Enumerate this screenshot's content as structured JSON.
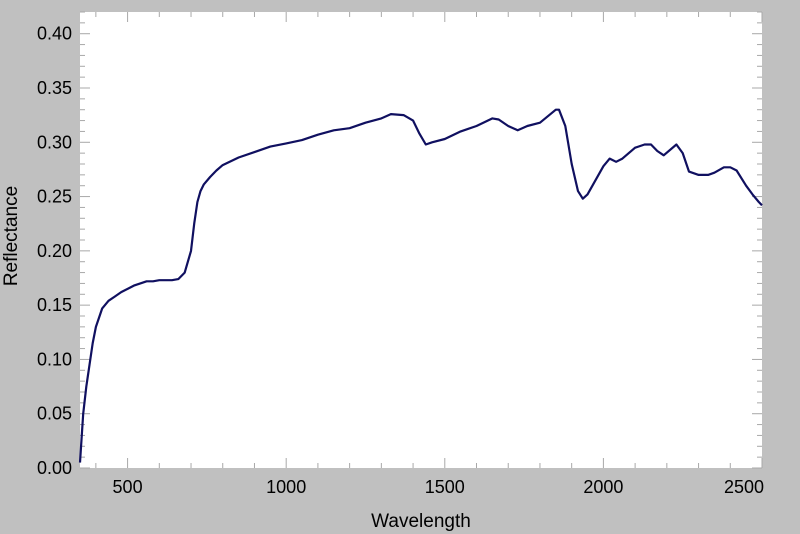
{
  "chart_data": {
    "type": "line",
    "title": "",
    "xlabel": "Wavelength",
    "ylabel": "Reflectance",
    "xlim": [
      350,
      2500
    ],
    "ylim": [
      0.0,
      0.42
    ],
    "x_ticks": [
      500,
      1000,
      1500,
      2000,
      2500
    ],
    "y_ticks": [
      0.0,
      0.05,
      0.1,
      0.15,
      0.2,
      0.25,
      0.3,
      0.35,
      0.4
    ],
    "x_tick_labels": [
      "500",
      "1000",
      "1500",
      "2000",
      "2500"
    ],
    "y_tick_labels": [
      "0.00",
      "0.05",
      "0.10",
      "0.15",
      "0.20",
      "0.25",
      "0.30",
      "0.35",
      "0.40"
    ],
    "grid": false,
    "legend": "none",
    "colors": {
      "line": "#101060",
      "plot_background": "#ffffff",
      "figure_background": "#c0c0c0"
    },
    "series": [
      {
        "x": [
          350,
          360,
          370,
          380,
          390,
          400,
          420,
          440,
          460,
          480,
          500,
          520,
          540,
          560,
          580,
          600,
          620,
          640,
          660,
          680,
          700,
          710,
          720,
          730,
          740,
          760,
          780,
          800,
          850,
          900,
          950,
          1000,
          1050,
          1100,
          1150,
          1200,
          1250,
          1300,
          1330,
          1370,
          1400,
          1420,
          1440,
          1460,
          1500,
          1550,
          1600,
          1650,
          1670,
          1700,
          1730,
          1760,
          1800,
          1850,
          1860,
          1880,
          1900,
          1920,
          1935,
          1950,
          2000,
          2020,
          2040,
          2060,
          2100,
          2130,
          2150,
          2170,
          2190,
          2230,
          2250,
          2270,
          2300,
          2330,
          2350,
          2380,
          2400,
          2420,
          2450,
          2470,
          2490,
          2500
        ],
        "y": [
          0.005,
          0.05,
          0.075,
          0.095,
          0.115,
          0.13,
          0.147,
          0.154,
          0.158,
          0.162,
          0.165,
          0.168,
          0.17,
          0.172,
          0.172,
          0.173,
          0.173,
          0.173,
          0.174,
          0.18,
          0.2,
          0.225,
          0.245,
          0.255,
          0.261,
          0.268,
          0.274,
          0.279,
          0.286,
          0.291,
          0.296,
          0.299,
          0.302,
          0.307,
          0.311,
          0.313,
          0.318,
          0.322,
          0.326,
          0.325,
          0.32,
          0.308,
          0.298,
          0.3,
          0.303,
          0.31,
          0.315,
          0.322,
          0.321,
          0.315,
          0.311,
          0.315,
          0.318,
          0.33,
          0.33,
          0.315,
          0.28,
          0.255,
          0.248,
          0.252,
          0.278,
          0.285,
          0.282,
          0.285,
          0.295,
          0.298,
          0.298,
          0.292,
          0.288,
          0.298,
          0.29,
          0.273,
          0.27,
          0.27,
          0.272,
          0.277,
          0.277,
          0.274,
          0.26,
          0.252,
          0.245,
          0.242
        ]
      }
    ]
  }
}
